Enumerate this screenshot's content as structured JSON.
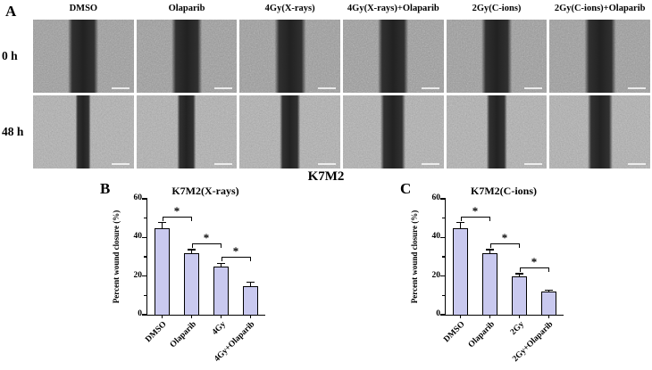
{
  "figure": {
    "panel_a": {
      "label": "A",
      "row_labels": [
        "0 h",
        "48 h"
      ],
      "column_labels": [
        "DMSO",
        "Olaparib",
        "4Gy(X-rays)",
        "4Gy(X-rays)+Olaparib",
        "2Gy(C-ions)",
        "2Gy(C-ions)+Olaparib"
      ],
      "row_shades": [
        "#9d9d9d",
        "#b1b1b1"
      ],
      "wound_band_width_pct": [
        [
          30,
          30,
          31,
          30,
          30,
          31
        ],
        [
          15,
          19,
          21,
          25,
          20,
          25
        ]
      ]
    },
    "center_title": "K7M2",
    "panel_b_label": "B",
    "panel_c_label": "C"
  },
  "chart_data": [
    {
      "type": "bar",
      "panel": "B",
      "title": "K7M2(X-rays)",
      "ylabel": "Percent wound closure (%)",
      "ylim": [
        0,
        60
      ],
      "yticks": [
        0,
        20,
        40,
        60
      ],
      "yticks_minor": [
        10,
        30,
        50
      ],
      "categories": [
        "DMSO",
        "Olaparib",
        "4Gy",
        "4Gy+Olaparib"
      ],
      "values": [
        45,
        32,
        25,
        15
      ],
      "errors": [
        3,
        2,
        2,
        2
      ],
      "significance": [
        {
          "pair": [
            0,
            1
          ],
          "label": "*"
        },
        {
          "pair": [
            1,
            2
          ],
          "label": "*"
        },
        {
          "pair": [
            2,
            3
          ],
          "label": "*"
        }
      ],
      "bar_color": "#c9c9ef",
      "bar_border": "#000000",
      "grid": false,
      "legend": false
    },
    {
      "type": "bar",
      "panel": "C",
      "title": "K7M2(C-ions)",
      "ylabel": "Percent wound closure (%)",
      "ylim": [
        0,
        60
      ],
      "yticks": [
        0,
        20,
        40,
        60
      ],
      "yticks_minor": [
        10,
        30,
        50
      ],
      "categories": [
        "DMSO",
        "Olaparib",
        "2Gy",
        "2Gy+Olaparib"
      ],
      "values": [
        45,
        32,
        20,
        12
      ],
      "errors": [
        3,
        2,
        1.5,
        1
      ],
      "significance": [
        {
          "pair": [
            0,
            1
          ],
          "label": "*"
        },
        {
          "pair": [
            1,
            2
          ],
          "label": "*"
        },
        {
          "pair": [
            2,
            3
          ],
          "label": "*"
        }
      ],
      "bar_color": "#c9c9ef",
      "bar_border": "#000000",
      "grid": false,
      "legend": false
    }
  ]
}
